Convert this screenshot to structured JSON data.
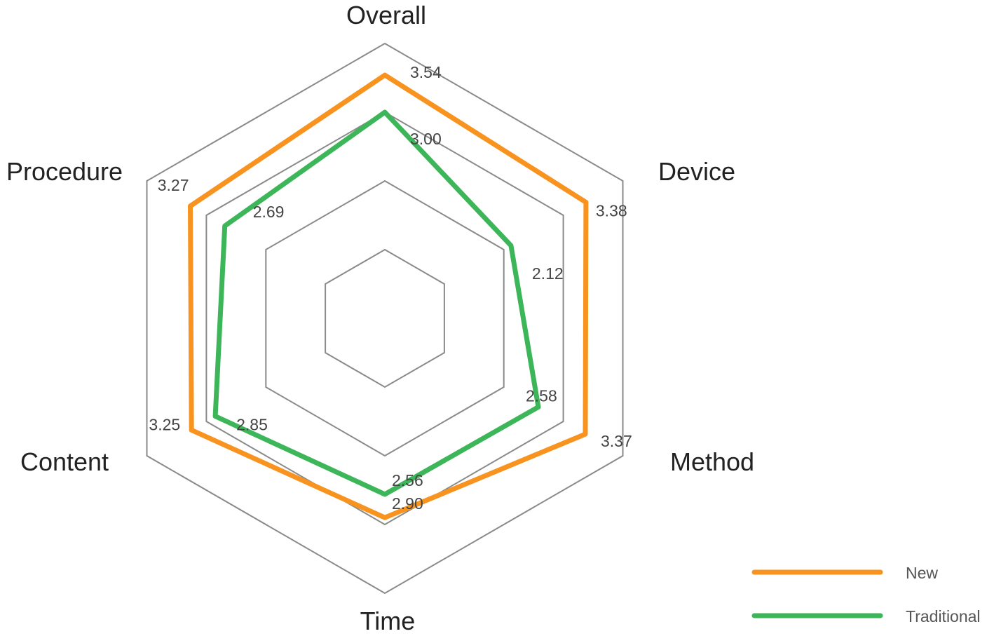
{
  "chart_data": {
    "type": "radar",
    "axes": [
      "Overall",
      "Device",
      "Method",
      "Time",
      "Content",
      "Procedure"
    ],
    "rlim": [
      0,
      4
    ],
    "grid_levels": [
      1,
      2,
      3,
      4
    ],
    "series": [
      {
        "name": "New",
        "color": "#F7931E",
        "values": [
          3.54,
          3.38,
          3.37,
          2.9,
          3.25,
          3.27
        ],
        "labels": [
          "3.54",
          "3.38",
          "3.37",
          "2.90",
          "3.25",
          "3.27"
        ]
      },
      {
        "name": "Traditional",
        "color": "#3DB65A",
        "values": [
          3.0,
          2.12,
          2.58,
          2.56,
          2.85,
          2.69
        ],
        "labels": [
          "3.00",
          "2.12",
          "2.58",
          "2.56",
          "2.85",
          "2.69"
        ]
      }
    ],
    "legend": {
      "position": "bottom-right"
    }
  }
}
